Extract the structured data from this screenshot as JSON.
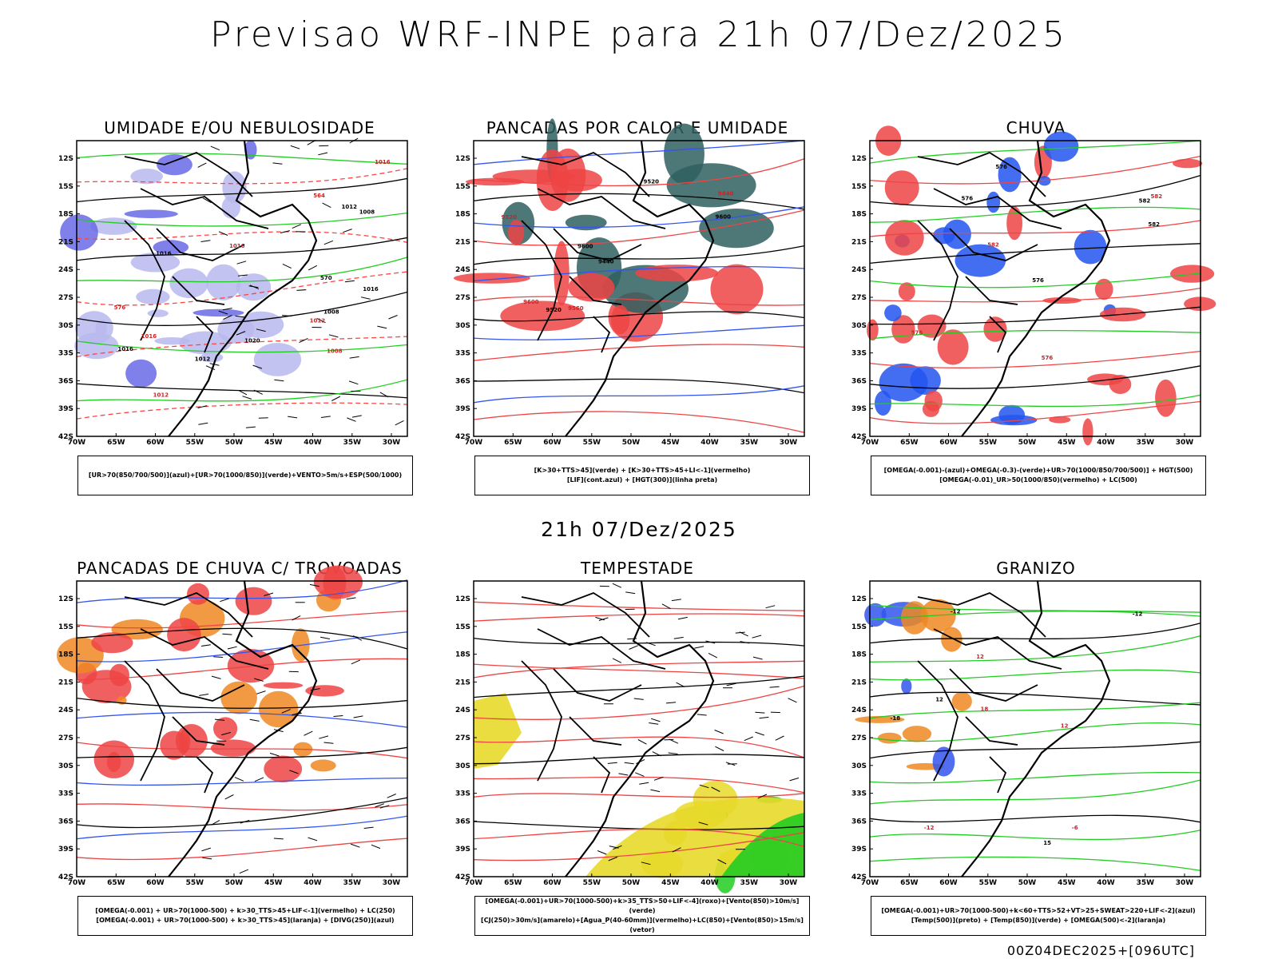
{
  "title": "Previsao WRF-INPE  para 21h 07/Dez/2025",
  "mid_title": "21h 07/Dez/2025",
  "footer": "00Z04DEC2025+[096UTC]",
  "axes": {
    "lat_ticks": [
      "12S",
      "15S",
      "18S",
      "21S",
      "24S",
      "27S",
      "30S",
      "33S",
      "36S",
      "39S",
      "42S"
    ],
    "lon_ticks": [
      "70W",
      "65W",
      "60W",
      "55W",
      "50W",
      "45W",
      "40W",
      "35W",
      "30W"
    ]
  },
  "panels": [
    {
      "title": "UMIDADE E/OU NEBULOSIDADE",
      "legend": [
        "[UR>70(850/700/500)](azul)+[UR>70(1000/850)](verde)+VENTO>5m/s+ESP(500/1000)"
      ],
      "labels": [
        "1008",
        "1012",
        "1016",
        "1008",
        "1012",
        "1016",
        "1008",
        "1016",
        "1012",
        "1016",
        "1020",
        "576",
        "570",
        "564",
        "1016",
        "1012",
        "1016"
      ],
      "palette": {
        "fill1": "#b8b8ee",
        "fill2": "#6a6ae6",
        "line1": "#22cc22",
        "line2": "#ff4444",
        "line3": "#000000"
      }
    },
    {
      "title": "PANCADAS POR CALOR E UMIDADE",
      "legend": [
        "[K>30+TTS>45](verde) + [K>30+TTS>45+LI<-1](vermelho)",
        "[LIF](cont.azul) + [HGT(300)](linha preta)"
      ],
      "labels": [
        "9600",
        "9600",
        "9520",
        "9560",
        "9600",
        "9440",
        "9520",
        "9520",
        "9440"
      ],
      "palette": {
        "fill1": "#ee4444",
        "fill2": "#2f5f5f",
        "line1": "#3355ee",
        "line2": "#ee4444",
        "line3": "#000000"
      }
    },
    {
      "title": "CHUVA",
      "legend": [
        "[OMEGA(-0.001)-(azul)+OMEGA(-0.3)-(verde)+UR>70(1000/850/700/500)] + HGT(500)",
        "[OMEGA(-0.01)_UR>50(1000/850)(vermelho) + LC(500)"
      ],
      "labels": [
        "582",
        "582",
        "582",
        "576",
        "576",
        "582",
        "576",
        "576",
        "576"
      ],
      "palette": {
        "fill1": "#ee4444",
        "fill2": "#2255ee",
        "line1": "#22cc22",
        "line2": "#ee4444",
        "line3": "#000000"
      }
    },
    {
      "title": "PANCADAS DE CHUVA C/ TROVOADAS",
      "legend": [
        "[OMEGA(-0.001) + UR>70(1000-500) + k>30_TTS>45+LIF<-1](vermelho) + LC(250)",
        "[OMEGA(-0.001) + UR>70(1000-500) + k>30_TTS>45](laranja) + [DIVG(250)](azul)"
      ],
      "labels": [],
      "palette": {
        "fill1": "#ee4444",
        "fill2": "#ee8822",
        "line1": "#3355ee",
        "line2": "#ee4444",
        "line3": "#000000"
      }
    },
    {
      "title": "TEMPESTADE",
      "legend": [
        "[OMEGA(-0.001)+UR>70(1000-500)+k>35_TTS>50+LIF<-4](roxo)+[Vento(850)>10m/s](verde)",
        "[CJ(250)>30m/s](amarelo)+[Agua_P(40-60mm)](vermelho)+LC(850)+[Vento(850)>15m/s](vetor)"
      ],
      "labels": [],
      "palette": {
        "fill1": "#e8d92a",
        "fill2": "#22cc22",
        "line1": "#ee4444",
        "line2": "#ee4444",
        "line3": "#000000"
      }
    },
    {
      "title": "GRANIZO",
      "legend": [
        "[OMEGA(-0.001)+UR>70(1000-500)+k<60+TTS>52+VT>25+SWEAT>220+LIF<-2](azul)",
        "[Temp(500)](preto) + [Temp(850)](verde) + [OMEGA(500)<-2](laranja)"
      ],
      "labels": [
        "-12",
        "-6",
        "-12",
        "12",
        "15",
        "12",
        "12",
        "18",
        "-18",
        "-12"
      ],
      "palette": {
        "fill1": "#ee8822",
        "fill2": "#3355ee",
        "line1": "#22cc22",
        "line2": "#22cc22",
        "line3": "#000000"
      }
    }
  ]
}
